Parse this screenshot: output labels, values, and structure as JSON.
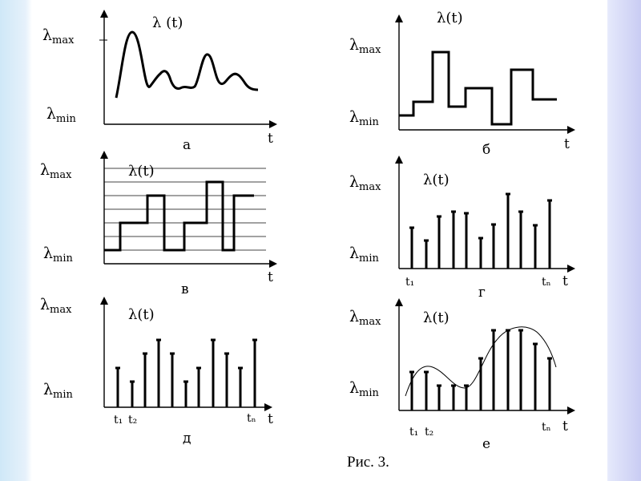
{
  "symbols": {
    "lambda": "λ",
    "max": "max",
    "min": "min",
    "t": "t",
    "lambda_of_t": "λ(t)",
    "lambda_of_t_spaced": "λ (t)",
    "t1": "t₁",
    "t2": "t₂",
    "tn": "tₙ"
  },
  "panels": {
    "a": {
      "label": "а",
      "kind": "continuous curve"
    },
    "b": {
      "label": "б",
      "kind": "step function"
    },
    "v": {
      "label": "в",
      "kind": "quantized steps"
    },
    "g": {
      "label": "г",
      "kind": "non-uniform samples"
    },
    "d": {
      "label": "д",
      "kind": "uniform samples"
    },
    "e": {
      "label": "е",
      "kind": "sampled sinusoid"
    }
  },
  "caption": "Рис. 3.",
  "colors": {
    "ink": "#000000",
    "background": "#ffffff",
    "grid": "#444444",
    "frame_left": "#cfe8f7",
    "frame_right": "#c9ccf3"
  }
}
